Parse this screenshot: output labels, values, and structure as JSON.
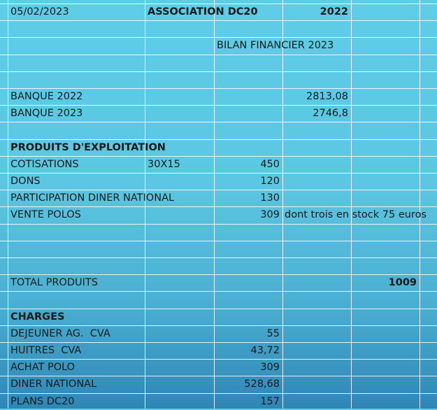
{
  "header": {
    "date": "05/02/2023",
    "association": "ASSOCIATION DC20",
    "year": "2022",
    "bilan_title": "BILAN FINANCIER 2023"
  },
  "banque": [
    {
      "label": "BANQUE 2022",
      "value": "2813,08"
    },
    {
      "label": "BANQUE 2023",
      "value": "2746,8"
    }
  ],
  "produits": {
    "title": "PRODUITS D'EXPLOITATION",
    "items": [
      {
        "label": "COTISATIONS",
        "detail": "30X15",
        "value": "450",
        "note": ""
      },
      {
        "label": "DONS",
        "detail": "",
        "value": "120",
        "note": ""
      },
      {
        "label": "PARTICIPATION DINER NATIONAL",
        "detail": "",
        "value": "130",
        "note": ""
      },
      {
        "label": "VENTE POLOS",
        "detail": "",
        "value": "309",
        "note": "dont trois en stock 75 euros"
      }
    ],
    "total_label": "TOTAL PRODUITS",
    "total_value": "1009"
  },
  "charges": {
    "title": "CHARGES",
    "items": [
      {
        "label": "DEJEUNER AG.  CVA",
        "value": "55"
      },
      {
        "label": "HUITRES  CVA",
        "value": "43,72"
      },
      {
        "label": "ACHAT POLO",
        "value": "309"
      },
      {
        "label": "DINER NATIONAL",
        "value": "528,68"
      },
      {
        "label": "PLANS DC20",
        "value": "157"
      }
    ]
  }
}
